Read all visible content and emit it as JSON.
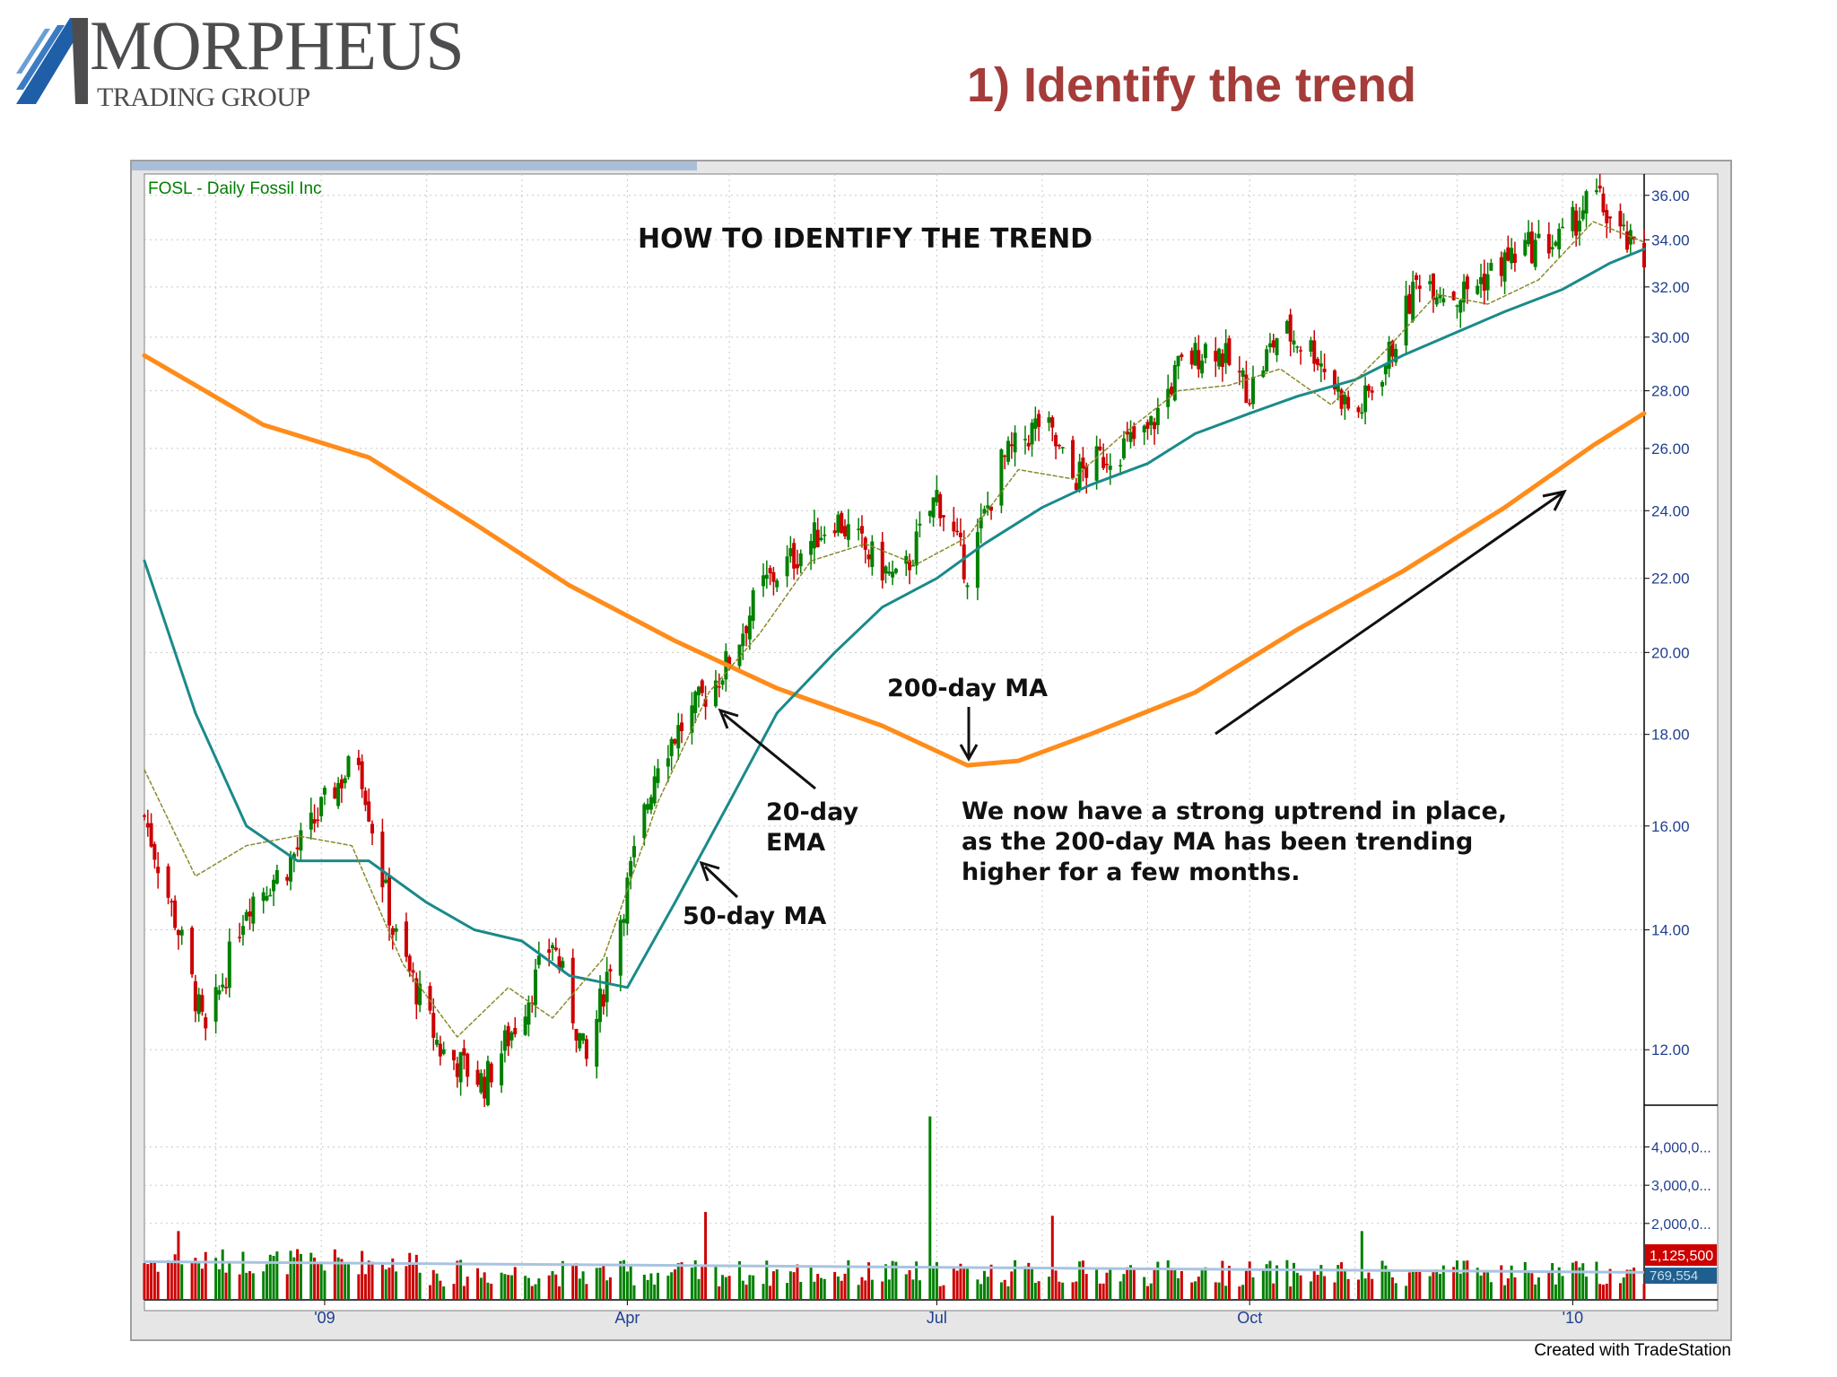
{
  "header": {
    "logo_main": "MORPHEUS",
    "logo_sub": "TRADING GROUP",
    "slide_title": "1) Identify the trend"
  },
  "footer": {
    "credit": "Created with TradeStation"
  },
  "colors": {
    "accent_title": "#a43c3a",
    "up_candle": "#008000",
    "down_candle": "#cc0000",
    "ma200": "#ff8c1a",
    "ma50": "#1a8a8a",
    "ema20": "#8a8a2a",
    "volume_avg": "#a9c4e0"
  },
  "chart_data": {
    "type": "line",
    "symbol_label": "FOSL - Daily  Fossil Inc",
    "title": "HOW TO IDENTIFY THE TREND",
    "y_scale": "log",
    "ylim": [
      11.2,
      37.0
    ],
    "y_ticks": [
      "36.00",
      "34.00",
      "32.00",
      "30.00",
      "28.00",
      "26.00",
      "24.00",
      "22.00",
      "20.00",
      "18.00",
      "16.00",
      "14.00",
      "12.00"
    ],
    "x_ticks": [
      "'09",
      "Apr",
      "Jul",
      "Oct",
      "'10"
    ],
    "x_tick_dates": [
      "2009-01-02",
      "2009-04-01",
      "2009-07-01",
      "2009-10-01",
      "2010-01-04"
    ],
    "x_range": [
      "2008-11-10",
      "2010-01-25"
    ],
    "grid": true,
    "series": [
      {
        "key": "ma200",
        "x": [
          "2008-11-10",
          "2008-12-15",
          "2009-01-15",
          "2009-02-15",
          "2009-03-15",
          "2009-04-15",
          "2009-05-15",
          "2009-06-15",
          "2009-07-10",
          "2009-07-25",
          "2009-08-15",
          "2009-09-15",
          "2009-10-15",
          "2009-11-15",
          "2009-12-15",
          "2010-01-10",
          "2010-01-25"
        ],
        "y": [
          29.3,
          26.8,
          25.7,
          23.6,
          21.8,
          20.3,
          19.1,
          18.2,
          17.3,
          17.4,
          18.0,
          19.0,
          20.6,
          22.2,
          24.1,
          26.1,
          27.2
        ]
      },
      {
        "key": "ma50",
        "x": [
          "2008-11-10",
          "2008-11-25",
          "2008-12-10",
          "2008-12-25",
          "2009-01-15",
          "2009-02-01",
          "2009-02-15",
          "2009-03-01",
          "2009-03-15",
          "2009-04-01",
          "2009-04-15",
          "2009-05-01",
          "2009-05-15",
          "2009-06-01",
          "2009-06-15",
          "2009-07-01",
          "2009-07-15",
          "2009-08-01",
          "2009-08-15",
          "2009-09-01",
          "2009-09-15",
          "2009-10-01",
          "2009-10-15",
          "2009-11-01",
          "2009-11-15",
          "2009-12-01",
          "2009-12-15",
          "2010-01-01",
          "2010-01-15",
          "2010-01-25"
        ],
        "y": [
          22.5,
          18.5,
          16.0,
          15.3,
          15.3,
          14.5,
          14.0,
          13.8,
          13.2,
          13.0,
          14.5,
          16.5,
          18.5,
          20.0,
          21.2,
          22.0,
          23.0,
          24.1,
          24.8,
          25.5,
          26.5,
          27.2,
          27.8,
          28.4,
          29.3,
          30.2,
          31.0,
          31.9,
          33.0,
          33.6
        ]
      },
      {
        "key": "ema20",
        "x": [
          "2008-11-10",
          "2008-11-25",
          "2008-12-10",
          "2008-12-25",
          "2009-01-10",
          "2009-01-25",
          "2009-02-10",
          "2009-02-25",
          "2009-03-10",
          "2009-03-25",
          "2009-04-10",
          "2009-04-25",
          "2009-05-10",
          "2009-05-25",
          "2009-06-10",
          "2009-06-25",
          "2009-07-10",
          "2009-07-25",
          "2009-08-10",
          "2009-08-25",
          "2009-09-10",
          "2009-09-25",
          "2009-10-10",
          "2009-10-25",
          "2009-11-10",
          "2009-11-25",
          "2009-12-10",
          "2009-12-25",
          "2010-01-10",
          "2010-01-25"
        ],
        "y": [
          17.2,
          15.0,
          15.6,
          15.8,
          15.6,
          13.4,
          12.2,
          13.0,
          12.5,
          13.5,
          16.5,
          19.0,
          20.5,
          22.5,
          23.0,
          22.4,
          23.2,
          25.3,
          25.0,
          26.5,
          28.0,
          28.2,
          28.8,
          27.5,
          29.5,
          31.7,
          31.3,
          32.3,
          34.8,
          33.9
        ]
      }
    ],
    "price_path": {
      "x": [
        "2008-11-10",
        "2008-11-20",
        "2008-11-28",
        "2008-12-10",
        "2008-12-22",
        "2009-01-05",
        "2009-01-12",
        "2009-01-22",
        "2009-02-05",
        "2009-02-18",
        "2009-02-28",
        "2009-03-10",
        "2009-03-20",
        "2009-04-01",
        "2009-04-10",
        "2009-04-20",
        "2009-05-01",
        "2009-05-10",
        "2009-05-20",
        "2009-06-01",
        "2009-06-10",
        "2009-06-20",
        "2009-07-01",
        "2009-07-10",
        "2009-07-20",
        "2009-08-01",
        "2009-08-10",
        "2009-08-20",
        "2009-09-01",
        "2009-09-10",
        "2009-09-20",
        "2009-10-01",
        "2009-10-10",
        "2009-10-20",
        "2009-11-01",
        "2009-11-10",
        "2009-11-20",
        "2009-12-01",
        "2009-12-10",
        "2009-12-20",
        "2010-01-01",
        "2010-01-10",
        "2010-01-18",
        "2010-01-25"
      ],
      "y": [
        16.2,
        14.0,
        12.2,
        14.5,
        15.2,
        16.8,
        17.5,
        14.0,
        12.0,
        11.5,
        12.5,
        13.8,
        11.8,
        14.8,
        17.5,
        18.5,
        19.8,
        21.7,
        22.6,
        23.8,
        22.8,
        21.8,
        24.5,
        22.2,
        25.5,
        27.0,
        25.0,
        25.8,
        26.5,
        28.8,
        29.8,
        28.0,
        30.3,
        29.5,
        27.0,
        29.0,
        32.5,
        31.6,
        32.5,
        33.6,
        34.0,
        36.1,
        34.2,
        33.0
      ]
    },
    "volume": {
      "ylim": [
        0,
        5000000
      ],
      "y_ticks": [
        "4,000,0...",
        "3,000,0...",
        "2,000,0..."
      ],
      "last_value_label": "1,125,500",
      "avg_label": "769,554",
      "spikes": [
        {
          "x": "2008-11-20",
          "value": 1800000
        },
        {
          "x": "2009-04-24",
          "value": 2300000
        },
        {
          "x": "2009-06-29",
          "value": 4800000
        },
        {
          "x": "2009-08-04",
          "value": 2200000
        },
        {
          "x": "2009-11-03",
          "value": 1800000
        }
      ]
    },
    "annotations": [
      {
        "text": "200-day MA"
      },
      {
        "text": "20-day"
      },
      {
        "text": "EMA"
      },
      {
        "text": "50-day MA"
      },
      {
        "text": "We now have a strong uptrend in place,"
      },
      {
        "text": "as the 200-day MA has been trending"
      },
      {
        "text": "higher for a few months."
      }
    ]
  }
}
